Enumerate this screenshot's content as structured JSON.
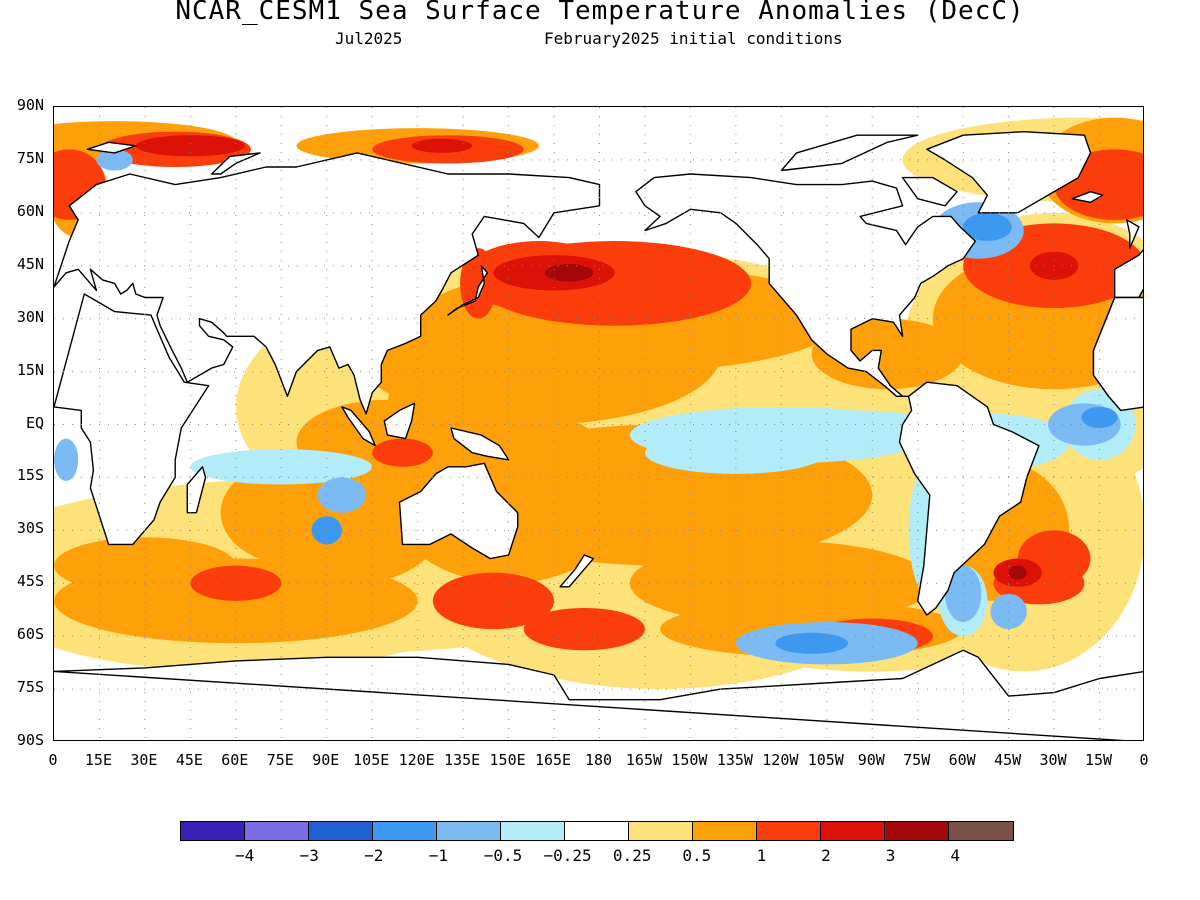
{
  "title": "NCAR_CESM1 Sea Surface Temperature Anomalies (DecC)",
  "subtitle_left": "Jul2025",
  "subtitle_right": "February2025 initial conditions",
  "y_ticks": [
    "90N",
    "75N",
    "60N",
    "45N",
    "30N",
    "15N",
    "EQ",
    "15S",
    "30S",
    "45S",
    "60S",
    "75S",
    "90S"
  ],
  "x_ticks": [
    "0",
    "15E",
    "30E",
    "45E",
    "60E",
    "75E",
    "90E",
    "105E",
    "120E",
    "135E",
    "150E",
    "165E",
    "180",
    "165W",
    "150W",
    "135W",
    "120W",
    "105W",
    "90W",
    "75W",
    "60W",
    "45W",
    "30W",
    "15W",
    "0"
  ],
  "colorbar": {
    "colors": [
      "#3a1fb8",
      "#7b6de6",
      "#1e5fd2",
      "#3d99f0",
      "#7cbaf4",
      "#b2ecf8",
      "#ffffff",
      "#fde27a",
      "#fda00a",
      "#fb3d0c",
      "#dc1207",
      "#a3080b",
      "#7a5248"
    ],
    "labels": [
      "−4",
      "−3",
      "−2",
      "−1",
      "−0.5",
      "−0.25",
      "0.25",
      "0.5",
      "1",
      "2",
      "3",
      "4"
    ]
  },
  "map": {
    "region": "global",
    "projection": "equirectangular",
    "lon_range": [
      0,
      360
    ],
    "lat_range": [
      -90,
      90
    ],
    "grid": "dotted 15°",
    "variable": "sea surface temperature anomaly",
    "anomaly_features": [
      {
        "region": "North Pacific (Kuroshio extension)",
        "lon": 165,
        "lat": 43,
        "level": 3
      },
      {
        "region": "Northeast Pacific",
        "lon": 195,
        "lat": 40,
        "level": 2
      },
      {
        "region": "Tropical western Pacific",
        "lon": 150,
        "lat": 10,
        "level": 1
      },
      {
        "region": "Equatorial central-eastern Pacific",
        "lon": 240,
        "lat": -3,
        "level": -0.5
      },
      {
        "region": "North Atlantic",
        "lon": 320,
        "lat": 45,
        "level": 2
      },
      {
        "region": "Labrador Sea",
        "lon": 305,
        "lat": 55,
        "level": -1
      },
      {
        "region": "Arctic / Barents Sea",
        "lon": 40,
        "lat": 78,
        "level": 2
      },
      {
        "region": "South Atlantic (Brazil-Malvinas)",
        "lon": 315,
        "lat": -42,
        "level": 3
      },
      {
        "region": "Southern Ocean south of Australia",
        "lon": 155,
        "lat": -55,
        "level": 2
      },
      {
        "region": "South Pacific",
        "lon": 255,
        "lat": -60,
        "level": -1
      },
      {
        "region": "Tropical Indian Ocean",
        "lon": 80,
        "lat": -10,
        "level": -0.5
      },
      {
        "region": "Southwest Atlantic off Argentina",
        "lon": 300,
        "lat": -45,
        "level": -1
      }
    ]
  }
}
